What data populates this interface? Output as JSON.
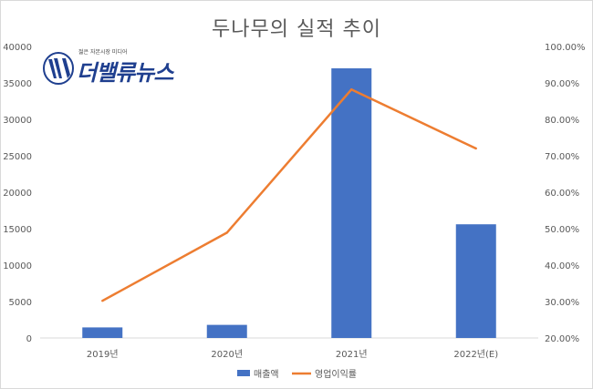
{
  "chart_data": {
    "type": "bar",
    "title": "두나무의 실적 추이",
    "categories": [
      "2019년",
      "2020년",
      "2021년",
      "2022년(E)"
    ],
    "series": [
      {
        "name": "매출액",
        "type": "bar",
        "axis": "left",
        "color": "#4472c4",
        "values": [
          1450,
          1800,
          37000,
          15600
        ]
      },
      {
        "name": "영업이익률",
        "type": "line",
        "axis": "right",
        "color": "#ed7d31",
        "values": [
          30.2,
          48.9,
          88.2,
          72.0
        ]
      }
    ],
    "y_left": {
      "min": 0,
      "max": 40000,
      "step": 5000,
      "tick_labels": [
        "0",
        "5000",
        "10000",
        "15000",
        "20000",
        "25000",
        "30000",
        "35000",
        "40000"
      ]
    },
    "y_right": {
      "min": 20,
      "max": 100,
      "step": 10,
      "tick_labels": [
        "20.00%",
        "30.00%",
        "40.00%",
        "50.00%",
        "60.00%",
        "70.00%",
        "80.00%",
        "90.00%",
        "100.00%"
      ]
    },
    "grid": false,
    "legend_position": "bottom"
  },
  "logo": {
    "tagline": "젊은 자본시장 미디어",
    "name": "더밸류뉴스",
    "color": "#1f3f8f"
  }
}
